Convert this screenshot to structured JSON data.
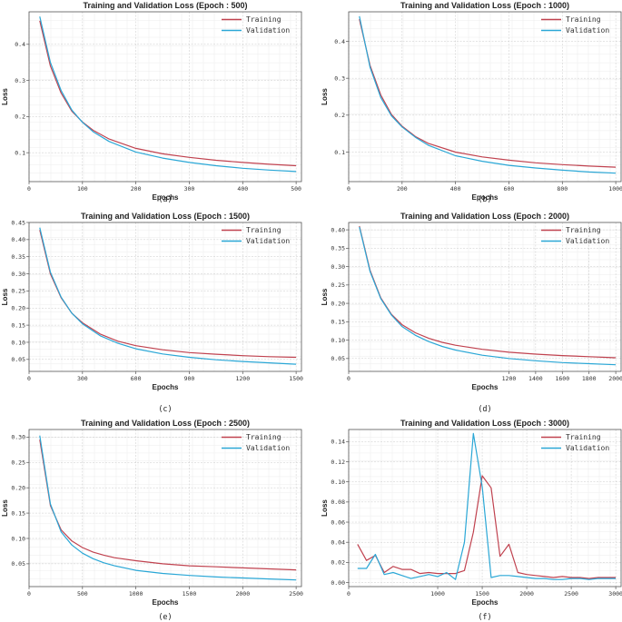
{
  "chart_data": [
    {
      "type": "line",
      "title": "Training and Validation Loss (Epoch : 500)",
      "xlabel": "Epochs",
      "ylabel": "Loss",
      "caption": "(a)",
      "xlim": [
        0,
        510
      ],
      "ylim": [
        0.02,
        0.49
      ],
      "xticks": [
        0,
        100,
        200,
        300,
        400,
        500
      ],
      "xticklabels": [
        "0",
        "100",
        "200",
        "300",
        "400",
        "500"
      ],
      "yticks": [
        0.1,
        0.2,
        0.3,
        0.4
      ],
      "yticklabels": [
        "0.1",
        "0.2",
        "0.3",
        "0.4"
      ],
      "legend": [
        "Training",
        "Validation"
      ],
      "legend_loc": "upper right",
      "series": [
        {
          "name": "Training",
          "color": "#c0424f",
          "x": [
            20,
            40,
            60,
            80,
            100,
            120,
            150,
            200,
            250,
            300,
            350,
            400,
            450,
            500
          ],
          "y": [
            0.465,
            0.34,
            0.265,
            0.215,
            0.185,
            0.162,
            0.138,
            0.112,
            0.097,
            0.087,
            0.079,
            0.073,
            0.068,
            0.064
          ]
        },
        {
          "name": "Validation",
          "color": "#2aa7d6",
          "x": [
            20,
            40,
            60,
            80,
            100,
            120,
            150,
            200,
            250,
            300,
            350,
            400,
            450,
            500
          ],
          "y": [
            0.477,
            0.35,
            0.272,
            0.218,
            0.184,
            0.158,
            0.131,
            0.102,
            0.085,
            0.073,
            0.064,
            0.057,
            0.052,
            0.048
          ]
        }
      ]
    },
    {
      "type": "line",
      "title": "Training and Validation Loss (Epoch : 1000)",
      "xlabel": "Epochs",
      "ylabel": "Loss",
      "caption": "(b)",
      "xlim": [
        0,
        1020
      ],
      "ylim": [
        0.02,
        0.48
      ],
      "xticks": [
        0,
        200,
        400,
        600,
        800,
        1000
      ],
      "xticklabels": [
        "0",
        "200",
        "400",
        "600",
        "800",
        "1000"
      ],
      "yticks": [
        0.1,
        0.2,
        0.3,
        0.4
      ],
      "yticklabels": [
        "0.1",
        "0.2",
        "0.3",
        "0.4"
      ],
      "legend": [
        "Training",
        "Validation"
      ],
      "legend_loc": "upper right",
      "series": [
        {
          "name": "Training",
          "color": "#c0424f",
          "x": [
            40,
            80,
            120,
            160,
            200,
            250,
            300,
            400,
            500,
            600,
            700,
            800,
            900,
            1000
          ],
          "y": [
            0.46,
            0.335,
            0.255,
            0.202,
            0.17,
            0.142,
            0.123,
            0.1,
            0.087,
            0.078,
            0.071,
            0.066,
            0.062,
            0.059
          ]
        },
        {
          "name": "Validation",
          "color": "#2aa7d6",
          "x": [
            40,
            80,
            120,
            160,
            200,
            250,
            300,
            400,
            500,
            600,
            700,
            800,
            900,
            1000
          ],
          "y": [
            0.468,
            0.33,
            0.248,
            0.198,
            0.168,
            0.14,
            0.118,
            0.09,
            0.075,
            0.064,
            0.057,
            0.051,
            0.046,
            0.043
          ]
        }
      ]
    },
    {
      "type": "line",
      "title": "Training and Validation Loss (Epoch : 1500)",
      "xlabel": "Epochs",
      "ylabel": "Loss",
      "caption": "(c)",
      "xlim": [
        0,
        1530
      ],
      "ylim": [
        0.015,
        0.45
      ],
      "xticks": [
        0,
        300,
        600,
        900,
        1200,
        1500
      ],
      "xticklabels": [
        "0",
        "300",
        "600",
        "900",
        "1200",
        "1500"
      ],
      "yticks": [
        0.05,
        0.1,
        0.15,
        0.2,
        0.25,
        0.3,
        0.35,
        0.4,
        0.45
      ],
      "yticklabels": [
        "0.05",
        "0.10",
        "0.15",
        "0.20",
        "0.25",
        "0.30",
        "0.35",
        "0.40",
        "0.45"
      ],
      "legend": [
        "Training",
        "Validation"
      ],
      "legend_loc": "upper right",
      "series": [
        {
          "name": "Training",
          "color": "#c0424f",
          "x": [
            60,
            120,
            180,
            240,
            300,
            400,
            500,
            600,
            750,
            900,
            1050,
            1200,
            1350,
            1500
          ],
          "y": [
            0.428,
            0.3,
            0.23,
            0.185,
            0.157,
            0.124,
            0.103,
            0.09,
            0.078,
            0.07,
            0.065,
            0.061,
            0.058,
            0.056
          ]
        },
        {
          "name": "Validation",
          "color": "#2aa7d6",
          "x": [
            60,
            120,
            180,
            240,
            300,
            400,
            500,
            600,
            750,
            900,
            1050,
            1200,
            1350,
            1500
          ],
          "y": [
            0.435,
            0.305,
            0.232,
            0.185,
            0.154,
            0.119,
            0.097,
            0.081,
            0.066,
            0.056,
            0.049,
            0.044,
            0.04,
            0.036
          ]
        }
      ]
    },
    {
      "type": "line",
      "title": "Training and Validation Loss (Epoch : 2000)",
      "xlabel": "Epochs",
      "ylabel": "Loss",
      "caption": "(d)",
      "xlim": [
        0,
        2040
      ],
      "ylim": [
        0.015,
        0.42
      ],
      "xticks": [
        0,
        1200,
        1400,
        1600,
        1800,
        2000
      ],
      "xticklabels": [
        "0",
        "1200",
        "1400",
        "1600",
        "1800",
        "2000"
      ],
      "yticks": [
        0.05,
        0.1,
        0.15,
        0.2,
        0.25,
        0.3,
        0.35,
        0.4
      ],
      "yticklabels": [
        "0.05",
        "0.10",
        "0.15",
        "0.20",
        "0.25",
        "0.30",
        "0.35",
        "0.40"
      ],
      "legend": [
        "Training",
        "Validation"
      ],
      "legend_loc": "upper right",
      "series": [
        {
          "name": "Training",
          "color": "#c0424f",
          "x": [
            80,
            160,
            240,
            320,
            400,
            500,
            600,
            700,
            800,
            1000,
            1200,
            1400,
            1600,
            1800,
            2000
          ],
          "y": [
            0.41,
            0.29,
            0.215,
            0.17,
            0.142,
            0.12,
            0.105,
            0.094,
            0.086,
            0.075,
            0.067,
            0.062,
            0.058,
            0.055,
            0.052
          ]
        },
        {
          "name": "Validation",
          "color": "#2aa7d6",
          "x": [
            80,
            160,
            240,
            320,
            400,
            500,
            600,
            700,
            800,
            1000,
            1200,
            1400,
            1600,
            1800,
            2000
          ],
          "y": [
            0.408,
            0.287,
            0.213,
            0.168,
            0.137,
            0.113,
            0.096,
            0.083,
            0.073,
            0.059,
            0.05,
            0.044,
            0.039,
            0.036,
            0.033
          ]
        }
      ]
    },
    {
      "type": "line",
      "title": "Training and Validation Loss (Epoch : 2500)",
      "xlabel": "Epochs",
      "ylabel": "Loss",
      "caption": "(e)",
      "xlim": [
        0,
        2550
      ],
      "ylim": [
        0.005,
        0.315
      ],
      "xticks": [
        0,
        500,
        1000,
        1500,
        2000,
        2500
      ],
      "xticklabels": [
        "0",
        "500",
        "1000",
        "1500",
        "2000",
        "2500"
      ],
      "yticks": [
        0.05,
        0.1,
        0.15,
        0.2,
        0.25,
        0.3
      ],
      "yticklabels": [
        "0.05",
        "0.10",
        "0.15",
        "0.20",
        "0.25",
        "0.30"
      ],
      "legend": [
        "Training",
        "Validation"
      ],
      "legend_loc": "upper right",
      "series": [
        {
          "name": "Training",
          "color": "#c0424f",
          "x": [
            100,
            200,
            300,
            400,
            500,
            600,
            700,
            800,
            1000,
            1250,
            1500,
            1750,
            2000,
            2250,
            2500
          ],
          "y": [
            0.295,
            0.165,
            0.117,
            0.095,
            0.082,
            0.073,
            0.067,
            0.062,
            0.056,
            0.05,
            0.046,
            0.044,
            0.042,
            0.04,
            0.038
          ]
        },
        {
          "name": "Validation",
          "color": "#2aa7d6",
          "x": [
            100,
            200,
            300,
            400,
            500,
            600,
            700,
            800,
            1000,
            1250,
            1500,
            1750,
            2000,
            2250,
            2500
          ],
          "y": [
            0.303,
            0.168,
            0.113,
            0.087,
            0.071,
            0.06,
            0.052,
            0.046,
            0.037,
            0.031,
            0.027,
            0.024,
            0.022,
            0.02,
            0.018
          ]
        }
      ]
    },
    {
      "type": "line",
      "title": "Training and Validation Loss (Epoch : 3000)",
      "xlabel": "Epochs",
      "ylabel": "Loss",
      "caption": "(f)",
      "xlim": [
        0,
        3060
      ],
      "ylim": [
        -0.004,
        0.152
      ],
      "xticks": [
        0,
        1000,
        1500,
        2000,
        2500,
        3000
      ],
      "xticklabels": [
        "0",
        "1000",
        "1500",
        "2000",
        "2500",
        "3000"
      ],
      "yticks": [
        0,
        0.02,
        0.04,
        0.06,
        0.08,
        0.1,
        0.12,
        0.14
      ],
      "yticklabels": [
        "0.00",
        "0.02",
        "0.04",
        "0.06",
        "0.08",
        "0.10",
        "0.12",
        "0.14"
      ],
      "legend": [
        "Training",
        "Validation"
      ],
      "legend_loc": "upper right",
      "series": [
        {
          "name": "Training",
          "color": "#c0424f",
          "x": [
            100,
            200,
            300,
            400,
            500,
            600,
            700,
            800,
            900,
            1000,
            1100,
            1200,
            1300,
            1400,
            1500,
            1600,
            1700,
            1800,
            1900,
            2000,
            2100,
            2200,
            2300,
            2400,
            2500,
            2600,
            2700,
            2800,
            2900,
            3000
          ],
          "y": [
            0.038,
            0.022,
            0.027,
            0.01,
            0.016,
            0.013,
            0.013,
            0.009,
            0.01,
            0.009,
            0.009,
            0.009,
            0.012,
            0.05,
            0.106,
            0.094,
            0.026,
            0.038,
            0.01,
            0.008,
            0.007,
            0.006,
            0.005,
            0.006,
            0.005,
            0.005,
            0.004,
            0.005,
            0.005,
            0.005
          ]
        },
        {
          "name": "Validation",
          "color": "#2aa7d6",
          "x": [
            100,
            200,
            300,
            400,
            500,
            600,
            700,
            800,
            900,
            1000,
            1100,
            1200,
            1300,
            1400,
            1500,
            1600,
            1700,
            1800,
            1900,
            2000,
            2100,
            2200,
            2300,
            2400,
            2500,
            2600,
            2700,
            2800,
            2900,
            3000
          ],
          "y": [
            0.014,
            0.014,
            0.028,
            0.008,
            0.01,
            0.007,
            0.004,
            0.006,
            0.008,
            0.006,
            0.01,
            0.003,
            0.04,
            0.148,
            0.095,
            0.005,
            0.007,
            0.007,
            0.006,
            0.005,
            0.004,
            0.004,
            0.003,
            0.003,
            0.004,
            0.004,
            0.003,
            0.004,
            0.004,
            0.004
          ]
        }
      ]
    }
  ]
}
